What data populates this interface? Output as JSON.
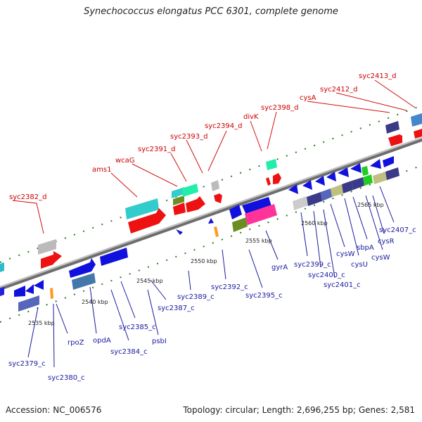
{
  "title": "Synechococcus elongatus PCC 6301, complete genome",
  "footer": {
    "accession": "Accession: NC_006576",
    "summary": "Topology: circular; Length: 2,696,255 bp; Genes: 2,581"
  },
  "colors": {
    "forward_strand_gene": "#ee1111",
    "reverse_strand_gene": "#1111dd",
    "backbone": "#8c8c8c",
    "tick": "#2e7d1e",
    "label_forward": "#cc0000",
    "label_reverse": "#1a1aa0"
  },
  "scale_labels": [
    "2535 kbp",
    "2540 kbp",
    "2545 kbp",
    "2550 kbp",
    "2555 kbp",
    "2560 kbp",
    "2565 kbp"
  ],
  "forward_labels": [
    "syc2382_d",
    "ams1",
    "wcaG",
    "syc2391_d",
    "syc2393_d",
    "syc2394_d",
    "divK",
    "syc2398_d",
    "cysA",
    "syc2412_d",
    "syc2413_d"
  ],
  "reverse_labels": [
    "syc2379_c",
    "syc2380_c",
    "rpoZ",
    "opdA",
    "syc2384_c",
    "syc2385_c",
    "psbI",
    "syc2387_c",
    "syc2389_c",
    "syc2392_c",
    "syc2395_c",
    "gyrA",
    "syc2399_c",
    "syc2400_c",
    "syc2401_c",
    "cysW",
    "cysU",
    "sbpA",
    "cysW",
    "cysR",
    "syc2407_c"
  ]
}
